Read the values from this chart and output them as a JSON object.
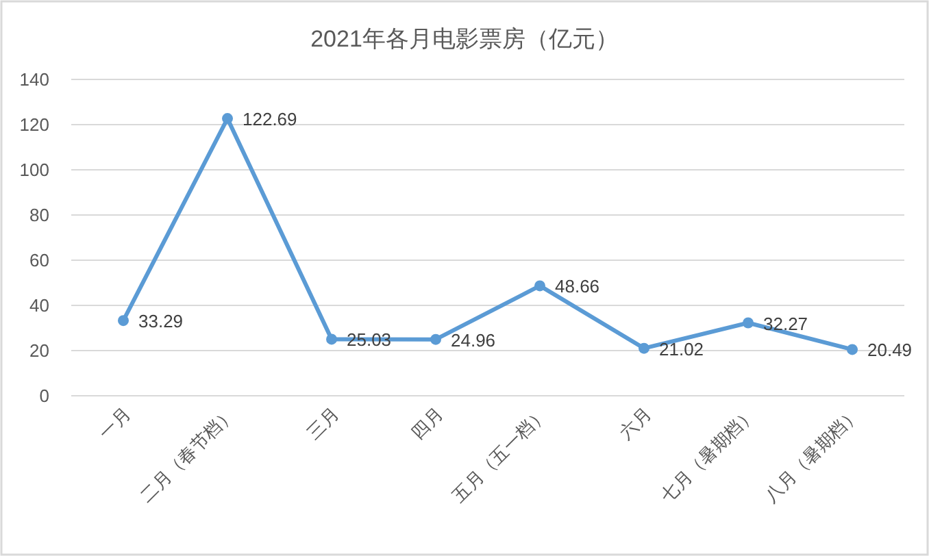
{
  "chart_data": {
    "type": "line",
    "title": "2021年各月电影票房（亿元）",
    "categories": [
      "一月",
      "二月（春节档）",
      "三月",
      "四月",
      "五月（五一档）",
      "六月",
      "七月（暑期档）",
      "八月（暑期档）"
    ],
    "values": [
      33.29,
      122.69,
      25.03,
      24.96,
      48.66,
      21.02,
      32.27,
      20.49
    ],
    "color": "#5b9bd5",
    "ylim": [
      0,
      140
    ],
    "yticks": [
      0,
      20,
      40,
      60,
      80,
      100,
      120,
      140
    ],
    "grid": "y",
    "data_labels": true,
    "marker": "circle",
    "line_style": "solid"
  }
}
